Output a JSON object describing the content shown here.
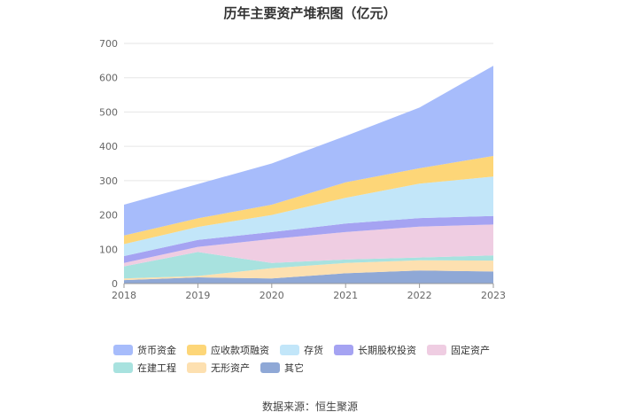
{
  "chart_data": {
    "type": "area",
    "stacked": true,
    "title": "历年主要资产堆积图（亿元）",
    "categories": [
      "2018",
      "2019",
      "2020",
      "2021",
      "2022",
      "2023"
    ],
    "ylim": [
      0,
      700
    ],
    "yticks": [
      0,
      100,
      200,
      300,
      400,
      500,
      600,
      700
    ],
    "grid": true,
    "legend_position": "bottom",
    "series": [
      {
        "name": "其它",
        "color": "#8fa8d6",
        "values": [
          10,
          18,
          15,
          30,
          38,
          35
        ]
      },
      {
        "name": "无形资产",
        "color": "#fde0b0",
        "values": [
          5,
          4,
          30,
          30,
          30,
          32
        ]
      },
      {
        "name": "在建工程",
        "color": "#a8e2df",
        "values": [
          35,
          70,
          15,
          10,
          8,
          15
        ]
      },
      {
        "name": "固定资产",
        "color": "#efcde2",
        "values": [
          10,
          15,
          70,
          80,
          90,
          90
        ]
      },
      {
        "name": "长期股权投资",
        "color": "#a5a3f2",
        "values": [
          20,
          20,
          20,
          25,
          25,
          25
        ]
      },
      {
        "name": "存货",
        "color": "#c2e6f9",
        "values": [
          35,
          38,
          50,
          75,
          100,
          115
        ]
      },
      {
        "name": "应收款项融资",
        "color": "#fdd678",
        "values": [
          25,
          25,
          30,
          45,
          45,
          60
        ]
      },
      {
        "name": "货币资金",
        "color": "#a7bcfb",
        "values": [
          90,
          100,
          120,
          135,
          177,
          263
        ]
      }
    ],
    "legend_order": [
      "货币资金",
      "应收款项融资",
      "存货",
      "长期股权投资",
      "固定资产",
      "在建工程",
      "无形资产",
      "其它"
    ]
  },
  "source": "数据来源：恒生聚源"
}
